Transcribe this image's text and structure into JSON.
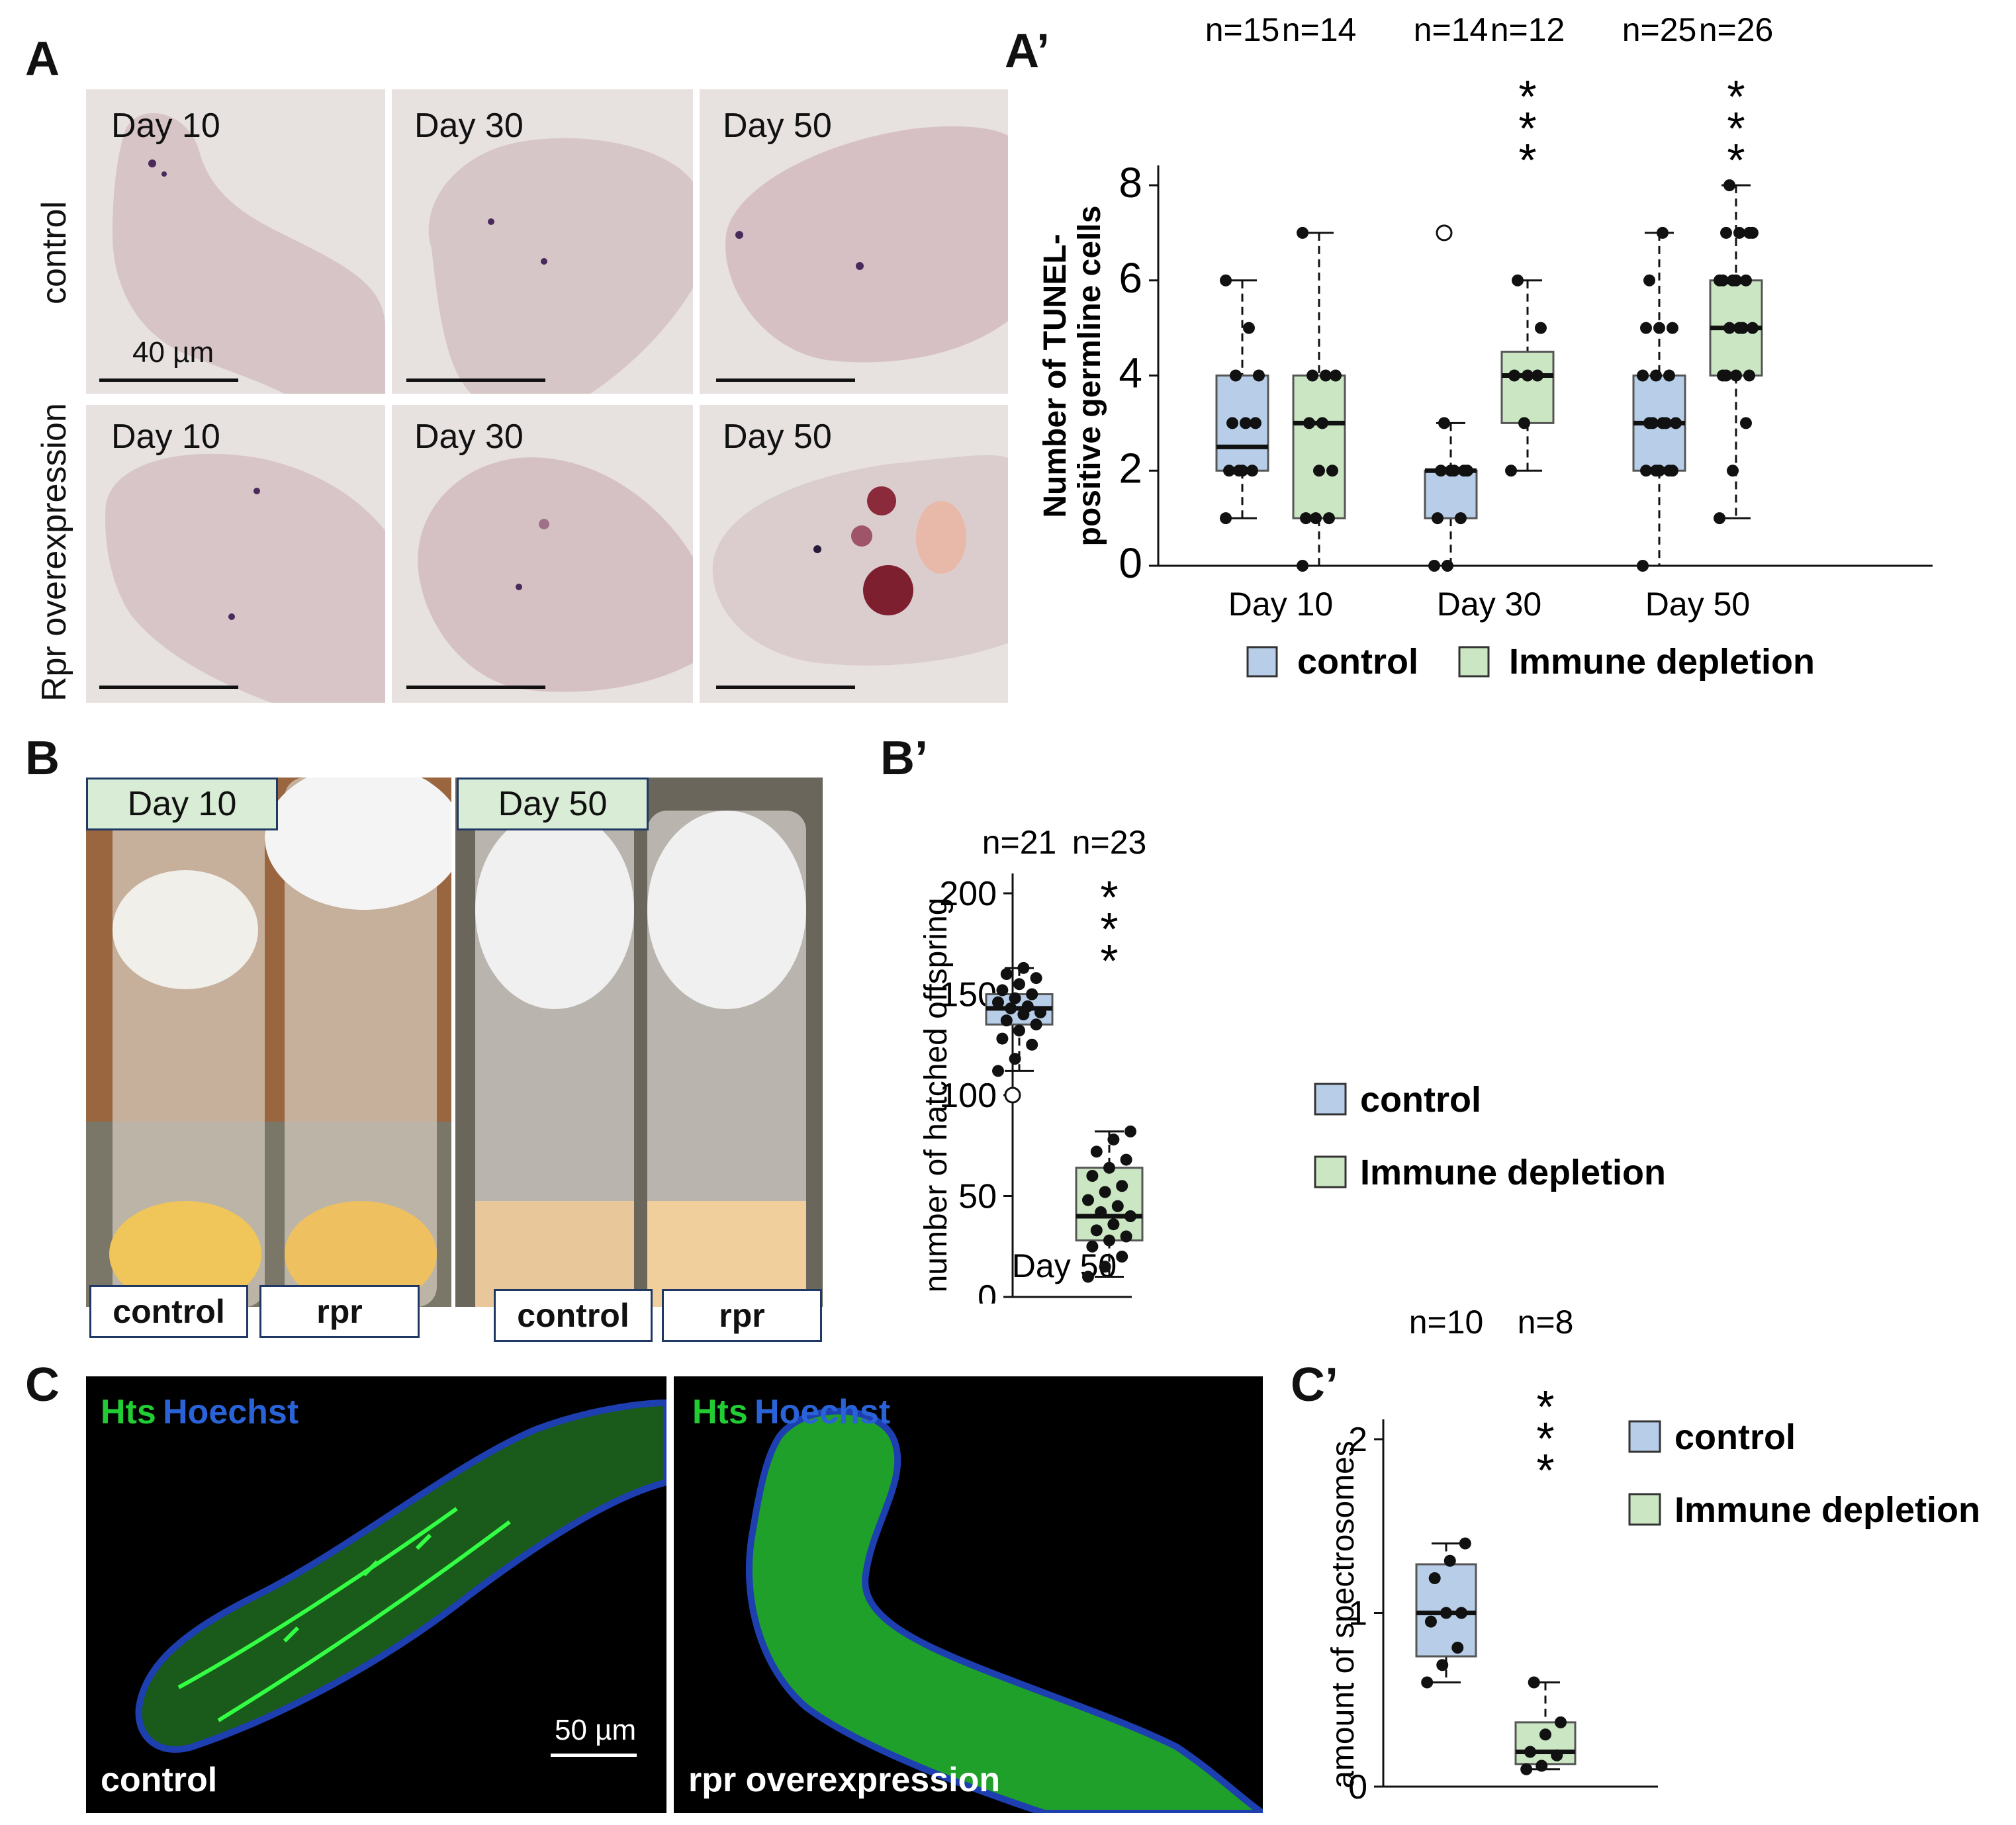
{
  "panels": {
    "a": "A",
    "a_prime": "A’",
    "b": "B",
    "b_prime": "B’",
    "c": "C",
    "c_prime": "C’"
  },
  "panel_a": {
    "row_labels": [
      "control",
      "Rpr overexpression"
    ],
    "day_labels": [
      "Day 10",
      "Day 30",
      "Day 50"
    ],
    "scale_label": "40 µm"
  },
  "panel_b": {
    "day_labels": [
      "Day 10",
      "Day 50"
    ],
    "tube_labels": [
      "control",
      "rpr",
      "control",
      "rpr"
    ]
  },
  "panel_c": {
    "stain_hts": "Hts",
    "stain_hoechst": "Hoechst",
    "image_labels": [
      "control",
      "rpr overexpression"
    ],
    "scale_label": "50 µm"
  },
  "colors": {
    "control": "#b7cde8",
    "immune": "#cbe6c2",
    "outline": "#555555",
    "hts": "#22cc33",
    "hoechst": "#2a63d8"
  },
  "chart_data": [
    {
      "type": "box",
      "id": "A-prime",
      "ylabel": "Number of TUNEL-\npositive germline cells",
      "ylim": [
        0,
        8
      ],
      "yticks": [
        0,
        2,
        4,
        6,
        8
      ],
      "categories": [
        "Day 10",
        "Day 30",
        "Day 50"
      ],
      "legend": [
        "control",
        "Immune depletion"
      ],
      "legend_position": "bottom",
      "n_labels": [
        "n=15",
        "n=14",
        "n=14",
        "n=12",
        "n=25",
        "n=26"
      ],
      "significance": [
        "",
        "",
        "",
        "***",
        "",
        "***"
      ],
      "series": [
        {
          "name": "control",
          "boxes": [
            {
              "whisker_low": 1,
              "q1": 2,
              "median": 2.5,
              "q3": 4,
              "whisker_high": 6,
              "outliers": [],
              "points": [
                1,
                2,
                2,
                2,
                2,
                3,
                3,
                3,
                4,
                4,
                5,
                6
              ]
            },
            {
              "whisker_low": 0,
              "q1": 1,
              "median": 2,
              "q3": 2,
              "whisker_high": 3,
              "outliers": [
                7
              ],
              "points": [
                0,
                0,
                1,
                1,
                2,
                2,
                2,
                2,
                2,
                3
              ]
            },
            {
              "whisker_low": 0,
              "q1": 2,
              "median": 3,
              "q3": 4,
              "whisker_high": 7,
              "outliers": [],
              "points": [
                0,
                2,
                2,
                2,
                2,
                2,
                3,
                3,
                3,
                3,
                3,
                4,
                4,
                4,
                5,
                5,
                5,
                6,
                7
              ]
            }
          ]
        },
        {
          "name": "Immune depletion",
          "boxes": [
            {
              "whisker_low": 0,
              "q1": 1,
              "median": 3,
              "q3": 4,
              "whisker_high": 7,
              "outliers": [],
              "points": [
                0,
                1,
                1,
                1,
                2,
                2,
                3,
                3,
                4,
                4,
                4,
                7
              ]
            },
            {
              "whisker_low": 2,
              "q1": 3,
              "median": 4,
              "q3": 4.5,
              "whisker_high": 6,
              "outliers": [],
              "points": [
                2,
                3,
                4,
                4,
                4,
                5,
                6
              ]
            },
            {
              "whisker_low": 1,
              "q1": 4,
              "median": 5,
              "q3": 6,
              "whisker_high": 8,
              "outliers": [],
              "points": [
                1,
                2,
                3,
                4,
                4,
                4,
                4,
                5,
                5,
                5,
                5,
                6,
                6,
                6,
                6,
                6,
                7,
                7,
                7,
                7,
                8
              ]
            }
          ]
        }
      ]
    },
    {
      "type": "box",
      "id": "B-prime",
      "ylabel": "number of hatched offspring",
      "ylim": [
        0,
        200
      ],
      "yticks": [
        0,
        50,
        100,
        150,
        200
      ],
      "categories": [
        "Day 50"
      ],
      "legend": [
        "control",
        "Immune depletion"
      ],
      "legend_position": "right",
      "n_labels": [
        "n=21",
        "n=23"
      ],
      "significance": [
        "",
        "***"
      ],
      "series": [
        {
          "name": "control",
          "boxes": [
            {
              "whisker_low": 112,
              "q1": 135,
              "median": 143,
              "q3": 150,
              "whisker_high": 163,
              "outliers": [
                100
              ],
              "points": [
                112,
                118,
                125,
                128,
                132,
                135,
                137,
                140,
                141,
                143,
                144,
                146,
                148,
                150,
                152,
                155,
                158,
                160,
                163
              ]
            }
          ]
        },
        {
          "name": "Immune depletion",
          "boxes": [
            {
              "whisker_low": 10,
              "q1": 28,
              "median": 40,
              "q3": 64,
              "whisker_high": 82,
              "outliers": [],
              "points": [
                10,
                15,
                20,
                25,
                28,
                30,
                33,
                36,
                40,
                42,
                45,
                48,
                52,
                55,
                60,
                64,
                68,
                72,
                78,
                82
              ]
            }
          ]
        }
      ]
    },
    {
      "type": "box",
      "id": "C-prime",
      "ylabel": "amount of spectrosomes",
      "ylim": [
        0,
        2
      ],
      "yticks": [
        0,
        1,
        2
      ],
      "categories": [
        ""
      ],
      "legend": [
        "control",
        "Immune depletion"
      ],
      "legend_position": "right",
      "n_labels": [
        "n=10",
        "n=8"
      ],
      "significance": [
        "",
        "***"
      ],
      "series": [
        {
          "name": "control",
          "boxes": [
            {
              "whisker_low": 0.6,
              "q1": 0.75,
              "median": 1.0,
              "q3": 1.28,
              "whisker_high": 1.4,
              "outliers": [],
              "points": [
                0.6,
                0.7,
                0.8,
                0.95,
                1.0,
                1.0,
                1.2,
                1.3,
                1.4
              ]
            }
          ]
        },
        {
          "name": "Immune depletion",
          "boxes": [
            {
              "whisker_low": 0.1,
              "q1": 0.13,
              "median": 0.2,
              "q3": 0.37,
              "whisker_high": 0.6,
              "outliers": [],
              "points": [
                0.1,
                0.12,
                0.18,
                0.2,
                0.3,
                0.37,
                0.6
              ]
            }
          ]
        }
      ]
    }
  ]
}
